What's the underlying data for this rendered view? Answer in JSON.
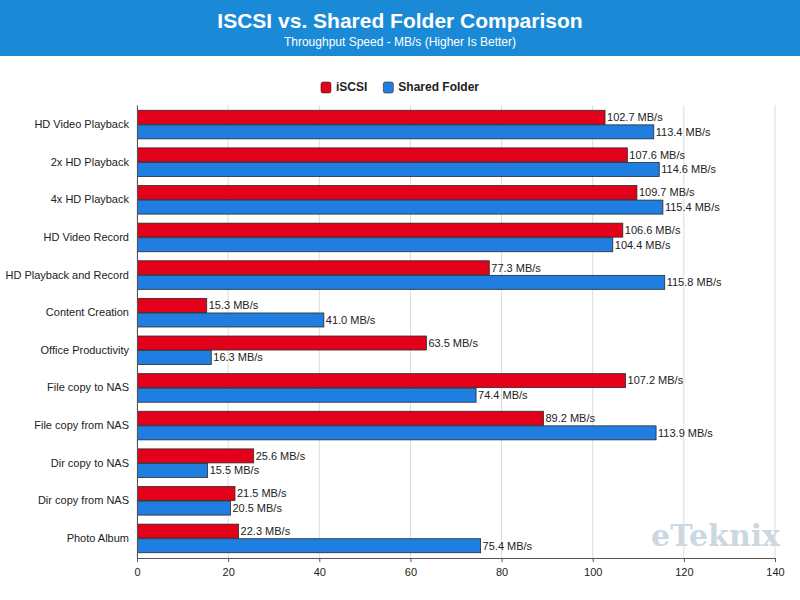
{
  "chart_data": {
    "type": "bar",
    "title": "ISCSI vs. Shared Folder Comparison",
    "subtitle": "Throughput Speed - MB/s (Higher Is Better)",
    "orientation": "horizontal",
    "categories": [
      "HD Video Playback",
      "2x HD Playback",
      "4x HD Playback",
      "HD Video Record",
      "HD Playback and Record",
      "Content Creation",
      "Office Productivity",
      "File copy to NAS",
      "File copy from NAS",
      "Dir copy to NAS",
      "Dir copy from NAS",
      "Photo Album"
    ],
    "series": [
      {
        "name": "iSCSI",
        "color": "#e3001b",
        "values": [
          102.7,
          107.6,
          109.7,
          106.6,
          77.3,
          15.3,
          63.5,
          107.2,
          89.2,
          25.6,
          21.5,
          22.3
        ],
        "value_labels": [
          "102.7 MB/s",
          "107.6 MB/s",
          "109.7 MB/s",
          "106.6 MB/s",
          "77.3 MB/s",
          "15.3 MB/s",
          "63.5 MB/s",
          "107.2 MB/s",
          "89.2 MB/s",
          "25.6 MB/s",
          "21.5 MB/s",
          "22.3 MB/s"
        ]
      },
      {
        "name": "Shared Folder",
        "color": "#1f7ee0",
        "values": [
          113.4,
          114.6,
          115.4,
          104.4,
          115.8,
          41.0,
          16.3,
          74.4,
          113.9,
          15.5,
          20.5,
          75.4
        ],
        "value_labels": [
          "113.4 MB/s",
          "114.6 MB/s",
          "115.4 MB/s",
          "104.4 MB/s",
          "115.8 MB/s",
          "41.0 MB/s",
          "16.3 MB/s",
          "74.4 MB/s",
          "113.9 MB/s",
          "15.5 MB/s",
          "20.5 MB/s",
          "75.4 MB/s"
        ]
      }
    ],
    "xlim": [
      0,
      140
    ],
    "xticks": [
      0,
      20,
      40,
      60,
      80,
      100,
      120,
      140
    ],
    "grid": true,
    "legend": "top",
    "data_labels": true,
    "annotations": [
      "eTeknix"
    ]
  }
}
